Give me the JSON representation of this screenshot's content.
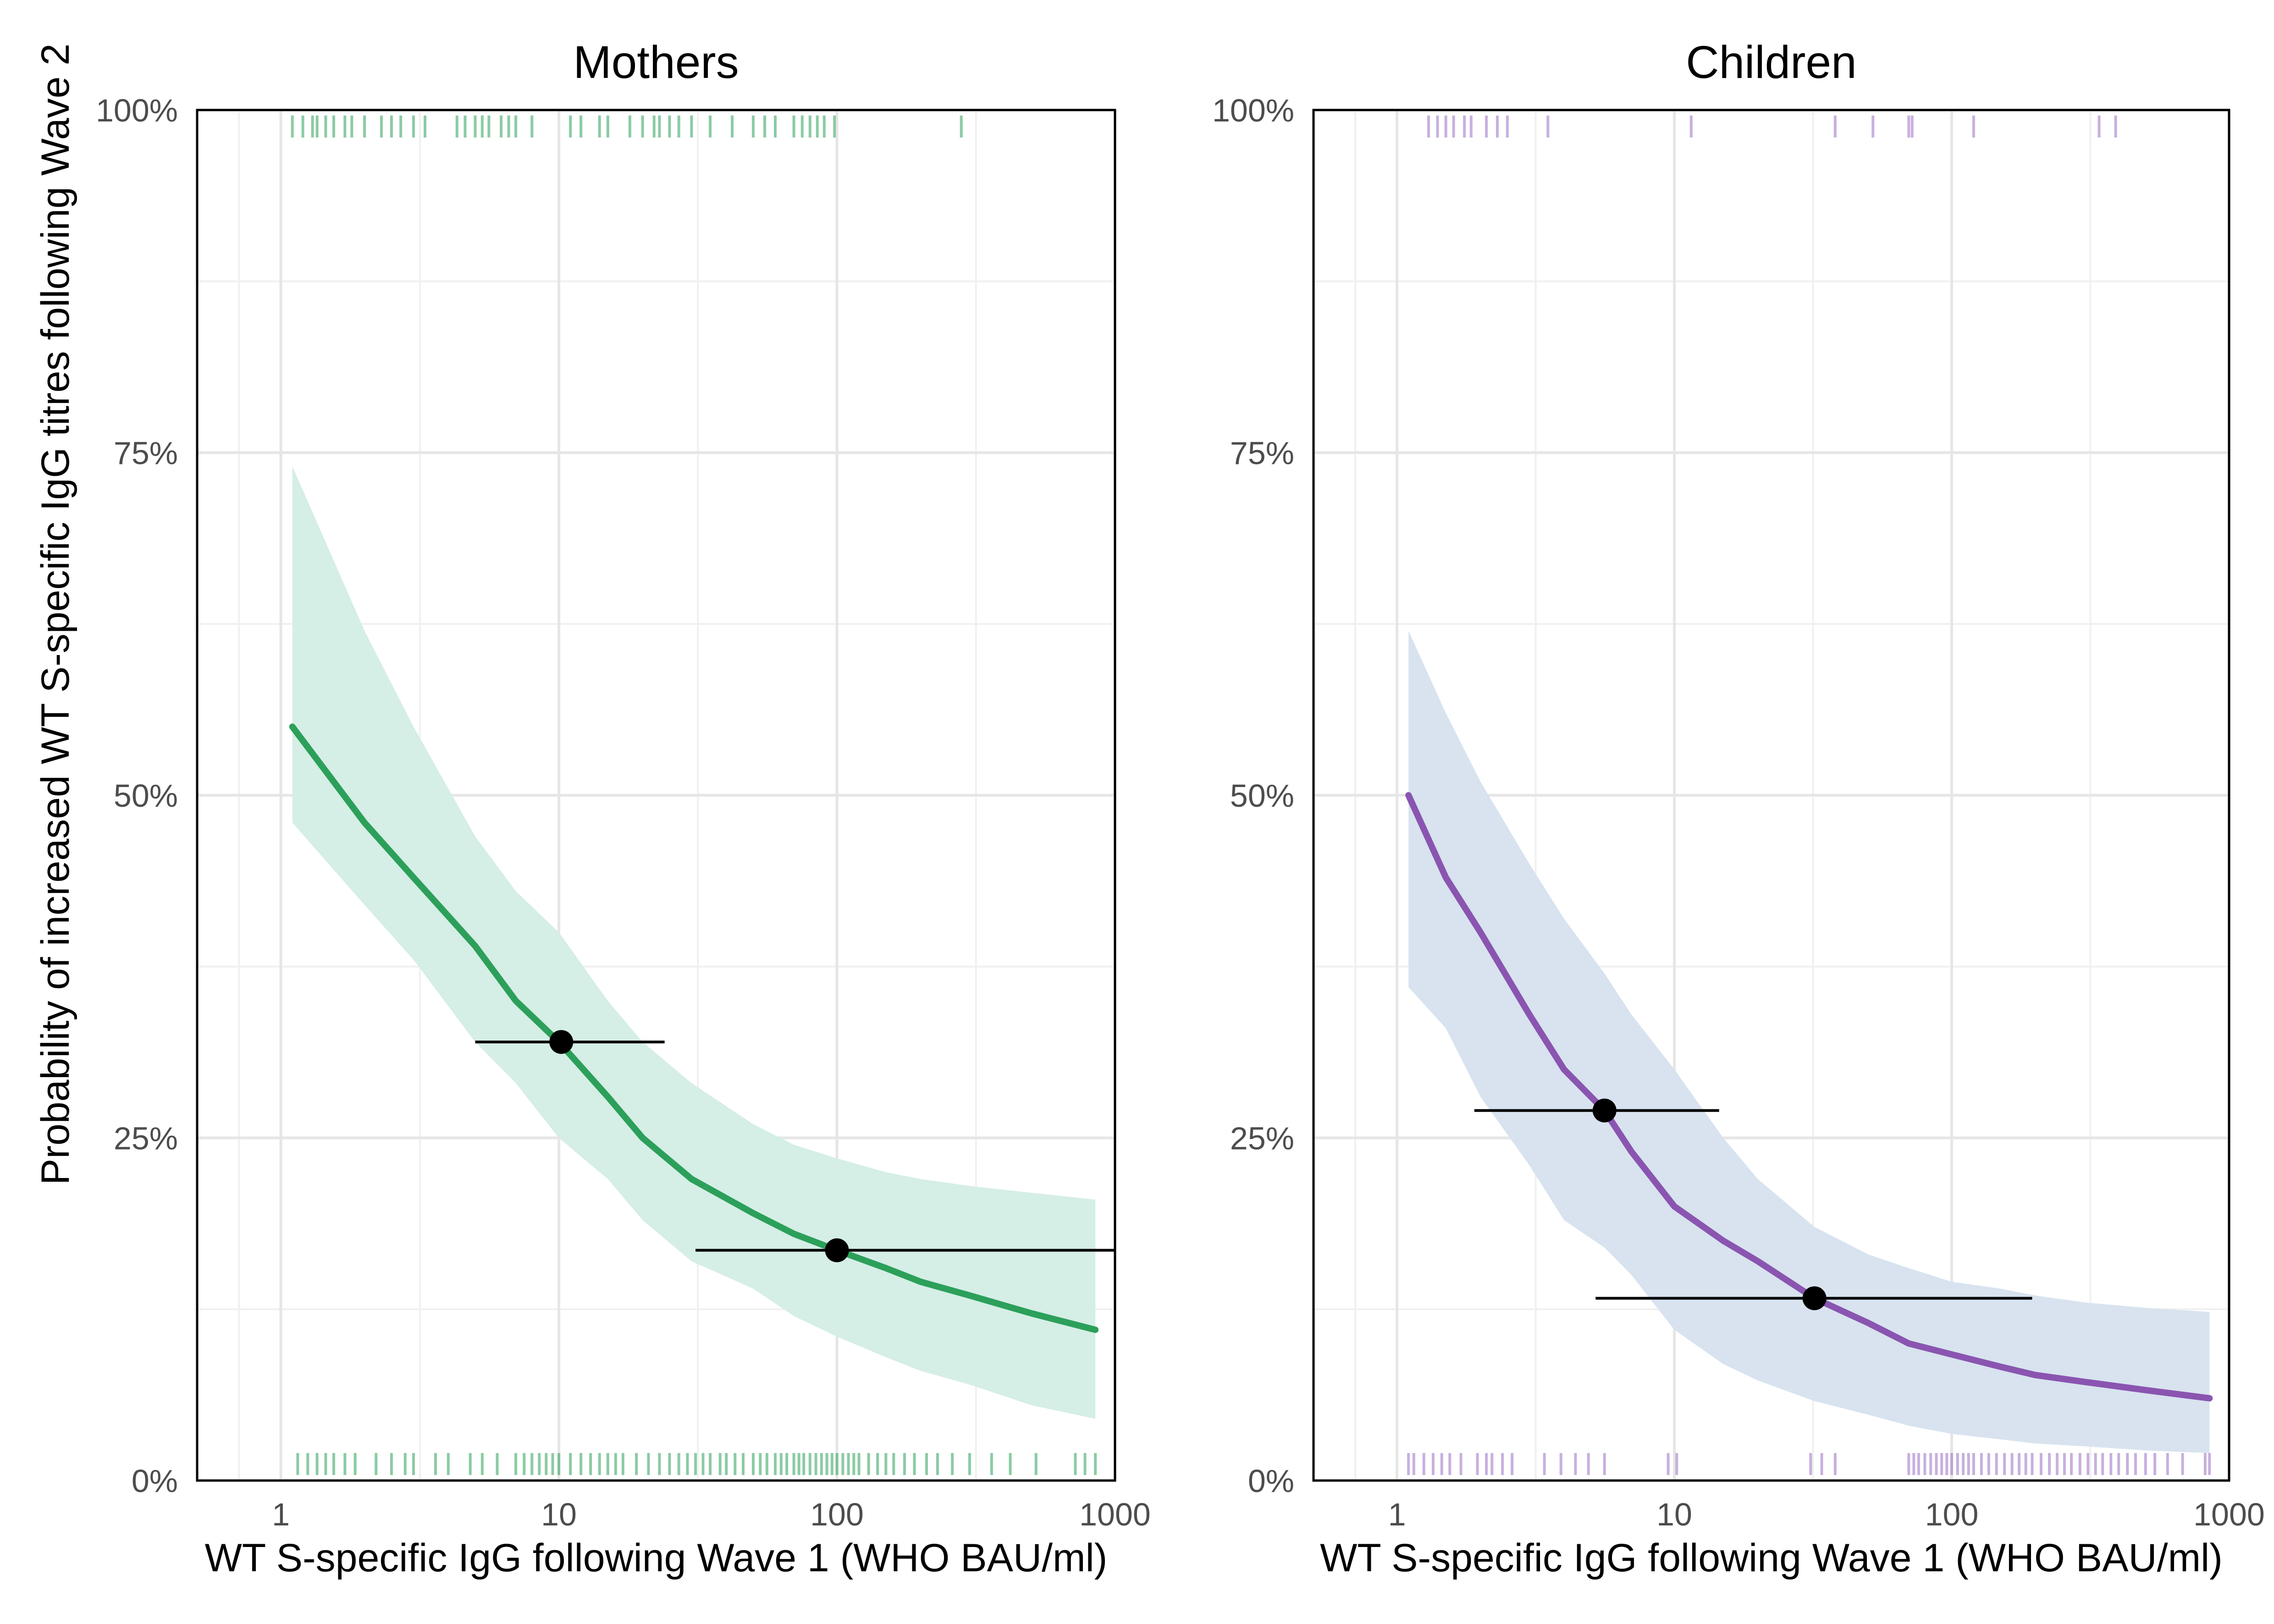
{
  "figure": {
    "ylabel": "Probability of increased WT S-specific IgG titres following Wave 2"
  },
  "colors": {
    "mothers_line": "#2ca05a",
    "mothers_band": "#d5eee6",
    "mothers_rug": "#2ca05a",
    "children_line": "#8a55b0",
    "children_band": "#d8e3ef",
    "children_rug": "#9b6fc4",
    "point": "#000000",
    "grid_major": "#e6e6e6",
    "grid_minor": "#f0f0f0",
    "frame": "#000000"
  },
  "chart_data": [
    {
      "type": "line",
      "title": "Mothers",
      "xlabel": "WT S-specific IgG following Wave 1 (WHO BAU/ml)",
      "ylabel": "Probability of increased WT S-specific IgG titres following Wave 2",
      "x_scale": "log10",
      "xlim": [
        0.5,
        1000
      ],
      "ylim": [
        0,
        1
      ],
      "x_ticks": [
        1,
        10,
        100,
        1000
      ],
      "x_tick_labels": [
        "1",
        "10",
        "100",
        "1000"
      ],
      "y_ticks": [
        0,
        0.25,
        0.5,
        0.75,
        1
      ],
      "y_tick_labels": [
        "0%",
        "25%",
        "50%",
        "75%",
        "100%"
      ],
      "grid": true,
      "curve": {
        "x": [
          1.1,
          2,
          3,
          5,
          7,
          10,
          15,
          20,
          30,
          50,
          70,
          100,
          150,
          200,
          300,
          500,
          850
        ],
        "y": [
          0.55,
          0.48,
          0.44,
          0.39,
          0.35,
          0.32,
          0.28,
          0.25,
          0.22,
          0.195,
          0.18,
          0.168,
          0.155,
          0.145,
          0.135,
          0.122,
          0.11
        ]
      },
      "ribbon": {
        "x": [
          1.1,
          2,
          3,
          5,
          7,
          10,
          15,
          20,
          30,
          50,
          70,
          100,
          150,
          200,
          300,
          500,
          850
        ],
        "lower": [
          0.48,
          0.42,
          0.38,
          0.32,
          0.29,
          0.25,
          0.22,
          0.19,
          0.16,
          0.14,
          0.12,
          0.105,
          0.09,
          0.08,
          0.07,
          0.055,
          0.045
        ],
        "upper": [
          0.74,
          0.62,
          0.55,
          0.47,
          0.43,
          0.4,
          0.35,
          0.32,
          0.29,
          0.26,
          0.245,
          0.235,
          0.225,
          0.22,
          0.215,
          0.21,
          0.205
        ]
      },
      "points": [
        {
          "x": 10.2,
          "y": 0.32,
          "x_low": 5.0,
          "x_high": 24
        },
        {
          "x": 100,
          "y": 0.168,
          "x_low": 31,
          "x_high": 1000
        }
      ],
      "rug_top_x": [
        1.1,
        1.2,
        1.3,
        1.35,
        1.45,
        1.55,
        1.7,
        1.8,
        2.0,
        2.3,
        2.5,
        2.7,
        3.0,
        3.3,
        4.3,
        4.6,
        5.0,
        5.3,
        5.6,
        6.2,
        6.6,
        7.0,
        8.0,
        11,
        12,
        14,
        15,
        18,
        20,
        22,
        23,
        25,
        27,
        30,
        35,
        42,
        50,
        55,
        60,
        70,
        75,
        80,
        85,
        90,
        98,
        280
      ],
      "rug_bottom_x": [
        1.15,
        1.25,
        1.35,
        1.45,
        1.55,
        1.7,
        1.85,
        2.2,
        2.5,
        2.8,
        3.0,
        3.6,
        4.0,
        4.8,
        5.3,
        6.0,
        7.0,
        7.5,
        8.0,
        8.5,
        9.0,
        9.5,
        10,
        11,
        12,
        13,
        14,
        15,
        16,
        17,
        19,
        21,
        23,
        25,
        27,
        29,
        31,
        33,
        35,
        38,
        40,
        43,
        46,
        50,
        53,
        56,
        60,
        63,
        66,
        70,
        73,
        76,
        80,
        84,
        88,
        92,
        96,
        100,
        105,
        110,
        115,
        120,
        130,
        140,
        150,
        160,
        175,
        190,
        210,
        230,
        260,
        300,
        360,
        420,
        520,
        720,
        780,
        850
      ]
    },
    {
      "type": "line",
      "title": "Children",
      "xlabel": "WT S-specific IgG following Wave 1 (WHO BAU/ml)",
      "ylabel": "",
      "x_scale": "log10",
      "xlim": [
        0.5,
        1000
      ],
      "ylim": [
        0,
        1
      ],
      "x_ticks": [
        1,
        10,
        100,
        1000
      ],
      "x_tick_labels": [
        "1",
        "10",
        "100",
        "1000"
      ],
      "y_ticks": [
        0,
        0.25,
        0.5,
        0.75,
        1
      ],
      "y_tick_labels": [
        "0%",
        "25%",
        "50%",
        "75%",
        "100%"
      ],
      "grid": true,
      "curve": {
        "x": [
          1.1,
          1.5,
          2,
          3,
          4,
          5.6,
          7,
          10,
          15,
          20,
          32,
          50,
          70,
          100,
          150,
          200,
          300,
          500,
          850
        ],
        "y": [
          0.5,
          0.44,
          0.4,
          0.34,
          0.3,
          0.27,
          0.24,
          0.2,
          0.175,
          0.16,
          0.133,
          0.115,
          0.1,
          0.092,
          0.083,
          0.077,
          0.072,
          0.066,
          0.06
        ]
      },
      "ribbon": {
        "x": [
          1.1,
          1.5,
          2,
          3,
          4,
          5.6,
          7,
          10,
          15,
          20,
          32,
          50,
          70,
          100,
          150,
          200,
          300,
          500,
          850
        ],
        "lower": [
          0.36,
          0.33,
          0.28,
          0.23,
          0.19,
          0.17,
          0.15,
          0.11,
          0.085,
          0.073,
          0.058,
          0.048,
          0.04,
          0.034,
          0.03,
          0.027,
          0.025,
          0.022,
          0.02
        ],
        "upper": [
          0.62,
          0.56,
          0.51,
          0.45,
          0.41,
          0.37,
          0.34,
          0.3,
          0.25,
          0.22,
          0.185,
          0.165,
          0.155,
          0.145,
          0.14,
          0.135,
          0.13,
          0.126,
          0.123
        ]
      },
      "points": [
        {
          "x": 5.6,
          "y": 0.27,
          "x_low": 1.9,
          "x_high": 14.5
        },
        {
          "x": 32,
          "y": 0.133,
          "x_low": 5.2,
          "x_high": 195
        }
      ],
      "rug_top_x": [
        1.3,
        1.4,
        1.5,
        1.6,
        1.75,
        1.85,
        2.1,
        2.3,
        2.5,
        3.5,
        11.5,
        38,
        52,
        70,
        72,
        120,
        340,
        390
      ],
      "rug_bottom_x": [
        1.1,
        1.15,
        1.25,
        1.35,
        1.45,
        1.55,
        1.7,
        1.95,
        2.1,
        2.2,
        2.4,
        2.6,
        3.4,
        3.9,
        4.4,
        4.9,
        5.6,
        9.5,
        10.2,
        31,
        34,
        38,
        70,
        73,
        76,
        80,
        84,
        88,
        92,
        96,
        100,
        105,
        110,
        115,
        120,
        128,
        136,
        145,
        155,
        165,
        175,
        185,
        195,
        210,
        225,
        240,
        255,
        270,
        290,
        310,
        330,
        350,
        375,
        400,
        430,
        460,
        500,
        540,
        600,
        680,
        820,
        850
      ]
    }
  ]
}
